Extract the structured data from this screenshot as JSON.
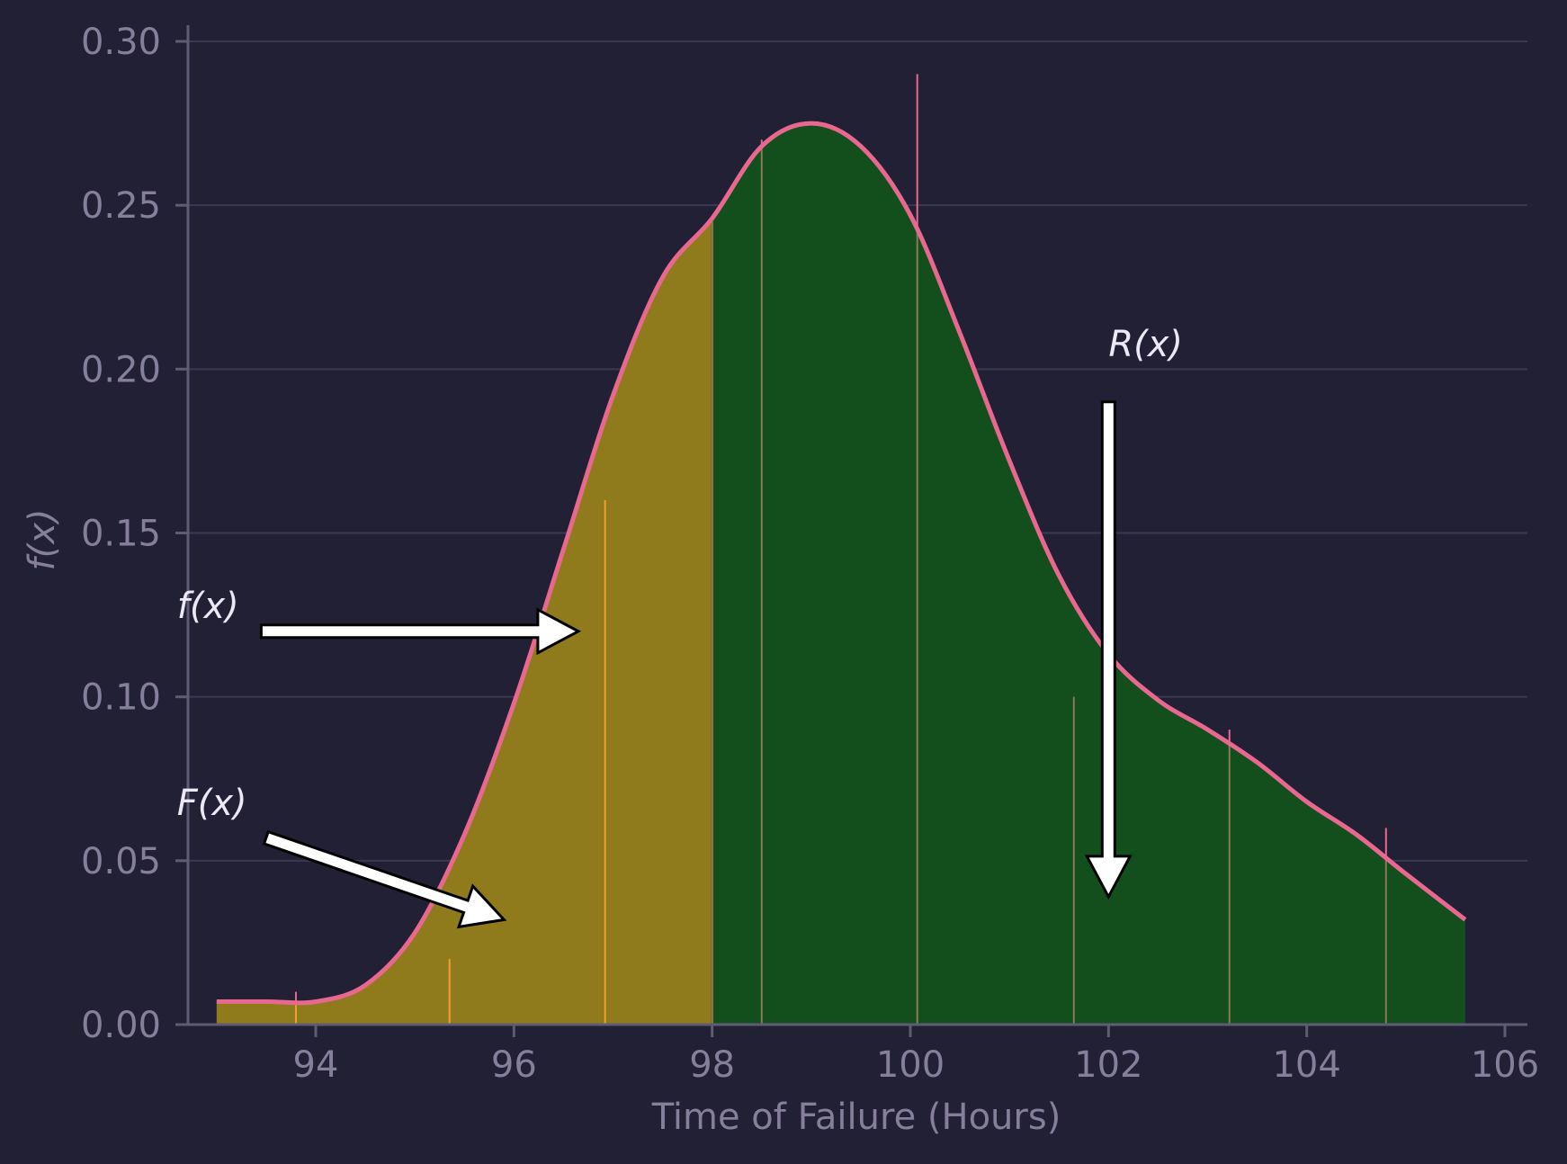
{
  "colors": {
    "background": "#222034",
    "grid": "#3b3852",
    "axis": "#5f5b75",
    "tick_text": "#857f9c",
    "curve": "#e8688f",
    "cdf_fill": "#8f7b1c",
    "reliability_fill": "#134f1d",
    "rug_left": "#f0a030",
    "rug_right": "#8a7a58",
    "arrow_fill": "#ffffff",
    "arrow_stroke": "#000000",
    "annotation_text": "#ece8f5"
  },
  "chart_data": {
    "type": "area",
    "xlabel": "Time of Failure (Hours)",
    "ylabel": "f(x)",
    "xlim": [
      92.4,
      106.3
    ],
    "ylim": [
      0,
      0.3
    ],
    "x_ticks": [
      "94",
      "96",
      "98",
      "100",
      "102",
      "104",
      "106"
    ],
    "y_ticks": [
      "0.00",
      "0.05",
      "0.10",
      "0.15",
      "0.20",
      "0.25",
      "0.30"
    ],
    "grid": "horizontal",
    "threshold_x": 98.0,
    "density_curve": {
      "x": [
        93.0,
        93.5,
        94.0,
        94.5,
        95.0,
        95.5,
        96.0,
        96.5,
        97.0,
        97.5,
        98.0,
        98.5,
        99.0,
        99.5,
        100.0,
        100.5,
        101.0,
        101.5,
        102.0,
        102.5,
        103.0,
        103.5,
        104.0,
        104.5,
        105.0,
        105.6
      ],
      "y": [
        0.007,
        0.007,
        0.007,
        0.012,
        0.028,
        0.058,
        0.098,
        0.145,
        0.192,
        0.228,
        0.246,
        0.268,
        0.275,
        0.268,
        0.247,
        0.211,
        0.172,
        0.137,
        0.113,
        0.099,
        0.09,
        0.08,
        0.068,
        0.058,
        0.046,
        0.032
      ]
    },
    "rug_marks": {
      "x": [
        93.8,
        95.35,
        96.92,
        98.0,
        98.5,
        100.07,
        101.65,
        103.22,
        104.8
      ],
      "height": [
        0.01,
        0.02,
        0.16,
        0.245,
        0.27,
        0.29,
        0.1,
        0.09,
        0.06
      ]
    },
    "regions": [
      {
        "name": "F(x)",
        "range": [
          93.0,
          98.0
        ]
      },
      {
        "name": "R(x)",
        "range": [
          98.0,
          105.6
        ]
      }
    ],
    "annotations": [
      {
        "id": "pdf",
        "text": "f(x)",
        "text_at": [
          92.6,
          0.124
        ],
        "arrow_from": [
          93.45,
          0.12
        ],
        "arrow_to": [
          96.65,
          0.12
        ]
      },
      {
        "id": "cdf",
        "text": "F(x)",
        "text_at": [
          92.6,
          0.064
        ],
        "arrow_from": [
          93.5,
          0.057
        ],
        "arrow_to": [
          95.9,
          0.032
        ]
      },
      {
        "id": "rel",
        "text": "R(x)",
        "text_at": [
          102.0,
          0.204
        ],
        "arrow_from": [
          102.0,
          0.19
        ],
        "arrow_to": [
          102.0,
          0.039
        ]
      }
    ]
  }
}
